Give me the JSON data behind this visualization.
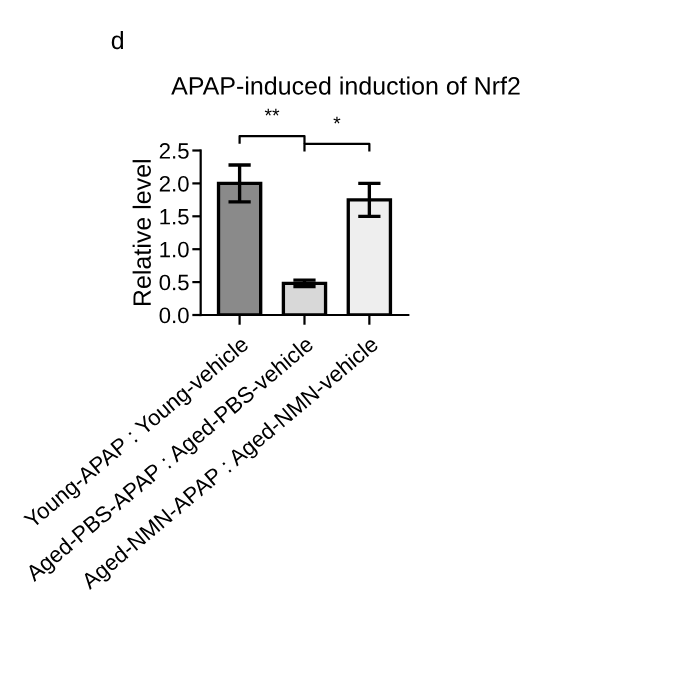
{
  "chart_data": {
    "type": "bar",
    "title": "APAP-induced induction of Nrf2",
    "ylabel": "Relative level",
    "categories": [
      "Young-APAP : Young-vehicle",
      "Aged-PBS-APAP : Aged-PBS-vehicle",
      "Aged-NMN-APAP : Aged-NMN-vehicle"
    ],
    "values": [
      2.0,
      0.48,
      1.75
    ],
    "errors": [
      0.28,
      0.05,
      0.25
    ],
    "colors": [
      "#8a8a8a",
      "#d8d8d8",
      "#eeeeee"
    ],
    "ylim": [
      0,
      2.5
    ],
    "yticks": [
      {
        "value": 0,
        "label": "0.0"
      },
      0.5,
      {
        "value": 1,
        "label": "1.0"
      },
      1.5,
      {
        "value": 2,
        "label": "2.0"
      },
      2.5
    ],
    "grid": false,
    "legend": false,
    "annotations": [
      "d",
      "**",
      "*"
    ]
  }
}
